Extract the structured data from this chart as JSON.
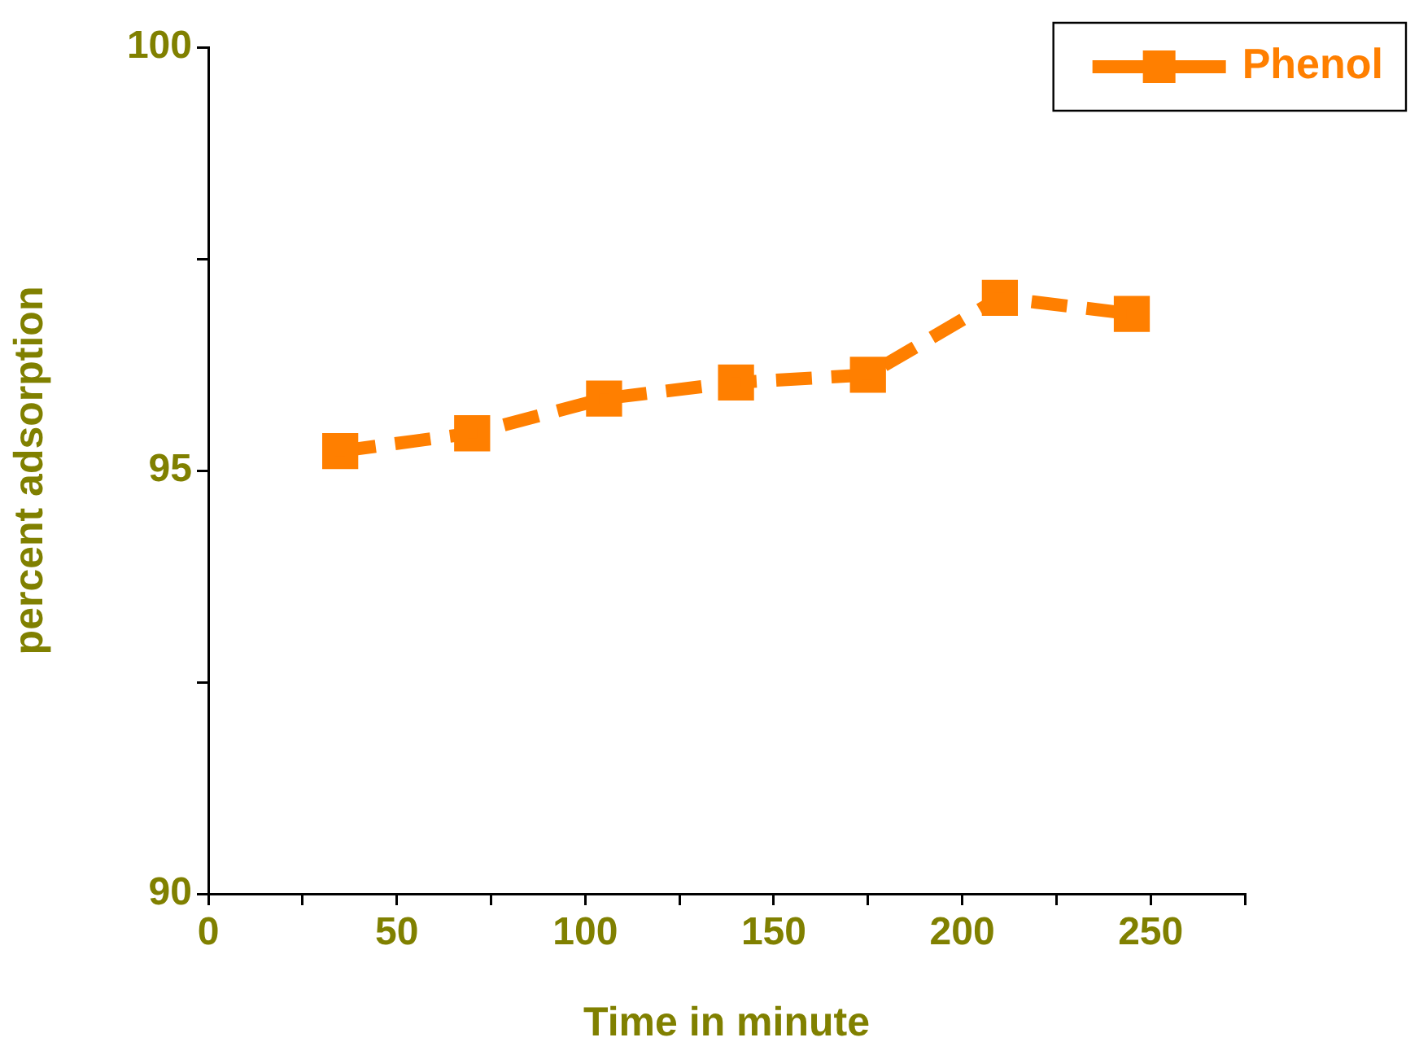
{
  "chart_data": {
    "type": "line",
    "xlabel": "Time in minute",
    "ylabel": "percent adsorption",
    "x": [
      35,
      70,
      105,
      140,
      175,
      210,
      245
    ],
    "series": [
      {
        "name": "Phenol",
        "color": "#ff7f00",
        "values": [
          95.23,
          95.44,
          95.85,
          96.04,
          96.13,
          97.04,
          96.85
        ]
      }
    ],
    "xlim": [
      0,
      275
    ],
    "xticks": [
      0,
      {
        "value": 25,
        "label": null
      },
      50,
      {
        "value": 75,
        "label": null
      },
      100,
      {
        "value": 125,
        "label": null
      },
      150,
      {
        "value": 175,
        "label": null
      },
      200,
      {
        "value": 225,
        "label": null
      },
      250,
      {
        "value": 275,
        "label": null
      }
    ],
    "ylim": [
      90,
      100
    ],
    "yticks": [
      90,
      {
        "value": 92.5,
        "label": null
      },
      95,
      {
        "value": 97.5,
        "label": null
      },
      100
    ],
    "grid": false,
    "legend": "top right",
    "marker": "square",
    "line_style": "dashed"
  }
}
